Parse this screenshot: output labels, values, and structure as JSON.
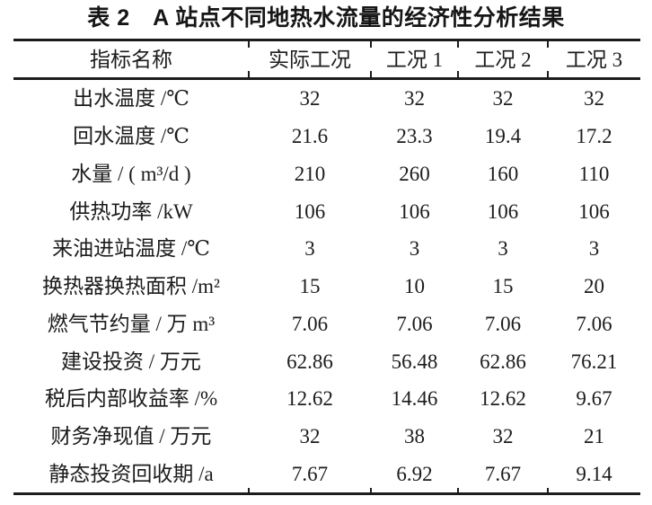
{
  "colors": {
    "ink": "#1c1c1c",
    "background": "#ffffff"
  },
  "table": {
    "title": "表 2　A 站点不同地热水流量的经济性分析结果",
    "columns": [
      "指标名称",
      "实际工况",
      "工况 1",
      "工况 2",
      "工况 3"
    ],
    "rows": [
      {
        "label": "出水温度 /℃",
        "values": [
          "32",
          "32",
          "32",
          "32"
        ]
      },
      {
        "label": "回水温度 /℃",
        "values": [
          "21.6",
          "23.3",
          "19.4",
          "17.2"
        ]
      },
      {
        "label": "水量 / ( m³/d )",
        "values": [
          "210",
          "260",
          "160",
          "110"
        ]
      },
      {
        "label": "供热功率 /kW",
        "values": [
          "106",
          "106",
          "106",
          "106"
        ]
      },
      {
        "label": "来油进站温度 /℃",
        "values": [
          "3",
          "3",
          "3",
          "3"
        ]
      },
      {
        "label": "换热器换热面积 /m²",
        "values": [
          "15",
          "10",
          "15",
          "20"
        ]
      },
      {
        "label": "燃气节约量 / 万 m³",
        "values": [
          "7.06",
          "7.06",
          "7.06",
          "7.06"
        ]
      },
      {
        "label": "建设投资 / 万元",
        "values": [
          "62.86",
          "56.48",
          "62.86",
          "76.21"
        ]
      },
      {
        "label": "税后内部收益率 /%",
        "values": [
          "12.62",
          "14.46",
          "12.62",
          "9.67"
        ]
      },
      {
        "label": "财务净现值 / 万元",
        "values": [
          "32",
          "38",
          "32",
          "21"
        ]
      },
      {
        "label": "静态投资回收期 /a",
        "values": [
          "7.67",
          "6.92",
          "7.67",
          "9.14"
        ]
      }
    ]
  }
}
